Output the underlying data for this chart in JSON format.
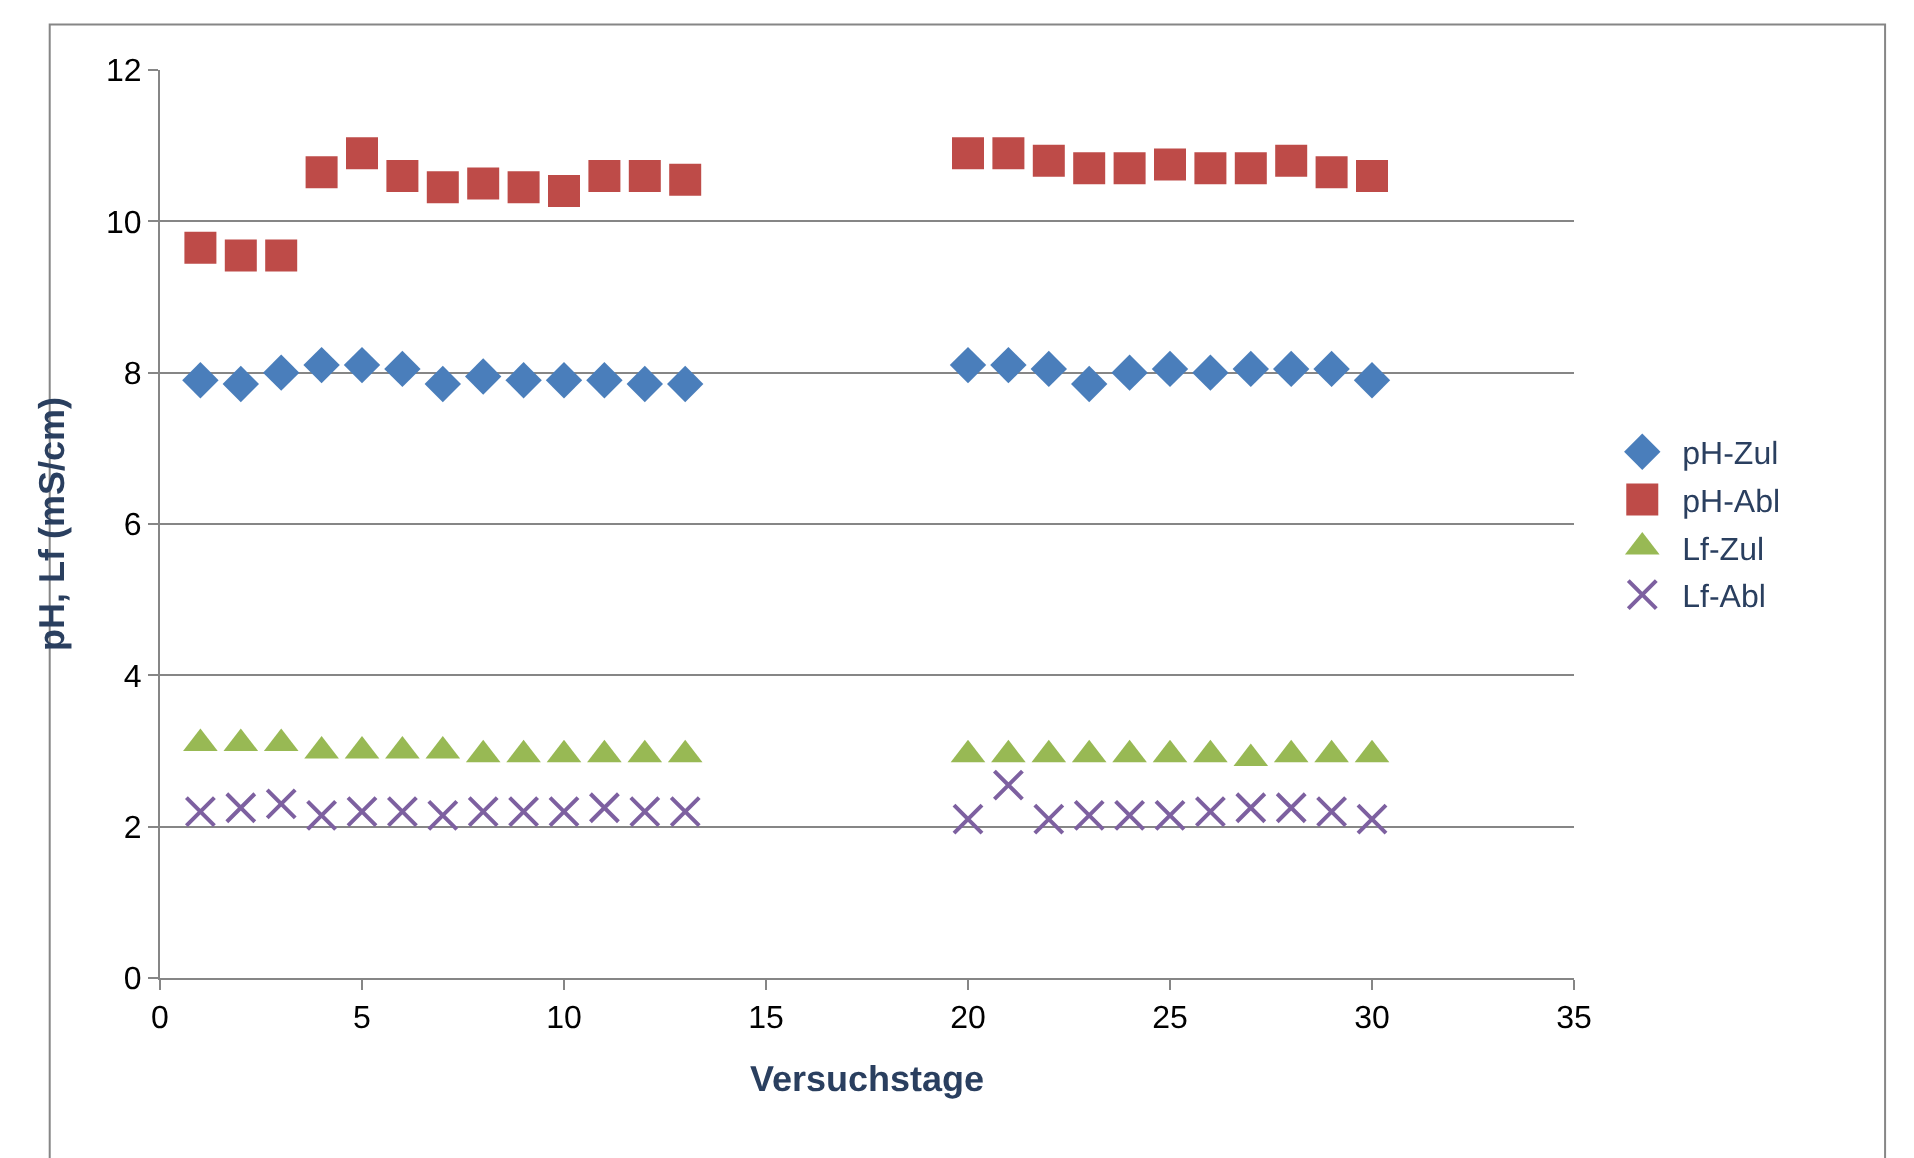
{
  "chart_data": {
    "type": "scatter",
    "xlabel": "Versuchstage",
    "ylabel": "pH, Lf (mS/cm)",
    "x": [
      1,
      2,
      3,
      4,
      5,
      6,
      7,
      8,
      9,
      10,
      11,
      12,
      13,
      20,
      21,
      22,
      23,
      24,
      25,
      26,
      27,
      28,
      29,
      30
    ],
    "series": [
      {
        "name": "pH-Zul",
        "color": "#4a7ebb",
        "marker": "diamond",
        "values": [
          7.9,
          7.85,
          8.0,
          8.1,
          8.1,
          8.05,
          7.85,
          7.95,
          7.9,
          7.9,
          7.9,
          7.85,
          7.85,
          8.1,
          8.1,
          8.05,
          7.85,
          8.0,
          8.05,
          8.0,
          8.05,
          8.05,
          8.05,
          7.9
        ]
      },
      {
        "name": "pH-Abl",
        "color": "#be4b48",
        "marker": "square",
        "values": [
          9.65,
          9.55,
          9.55,
          10.65,
          10.9,
          10.6,
          10.45,
          10.5,
          10.45,
          10.4,
          10.6,
          10.6,
          10.55,
          10.9,
          10.9,
          10.8,
          10.7,
          10.7,
          10.75,
          10.7,
          10.7,
          10.8,
          10.65,
          10.6
        ]
      },
      {
        "name": "Lf-Zul",
        "color": "#98b954",
        "marker": "triangle",
        "values": [
          3.1,
          3.1,
          3.1,
          3.0,
          3.0,
          3.0,
          3.0,
          2.95,
          2.95,
          2.95,
          2.95,
          2.95,
          2.95,
          2.95,
          2.95,
          2.95,
          2.95,
          2.95,
          2.95,
          2.95,
          2.9,
          2.95,
          2.95,
          2.95
        ]
      },
      {
        "name": "Lf-Abl",
        "color": "#7d60a0",
        "marker": "cross",
        "values": [
          2.2,
          2.25,
          2.3,
          2.15,
          2.2,
          2.2,
          2.15,
          2.2,
          2.2,
          2.2,
          2.25,
          2.2,
          2.2,
          2.1,
          2.55,
          2.1,
          2.15,
          2.15,
          2.15,
          2.2,
          2.25,
          2.25,
          2.2,
          2.1
        ]
      }
    ],
    "xlim": [
      0,
      35
    ],
    "xticks": [
      0,
      5,
      10,
      15,
      20,
      25,
      30,
      35
    ],
    "ylim": [
      0,
      12
    ],
    "yticks": [
      0,
      2,
      4,
      6,
      8,
      10,
      12
    ],
    "grid": "y",
    "legend": "right"
  }
}
